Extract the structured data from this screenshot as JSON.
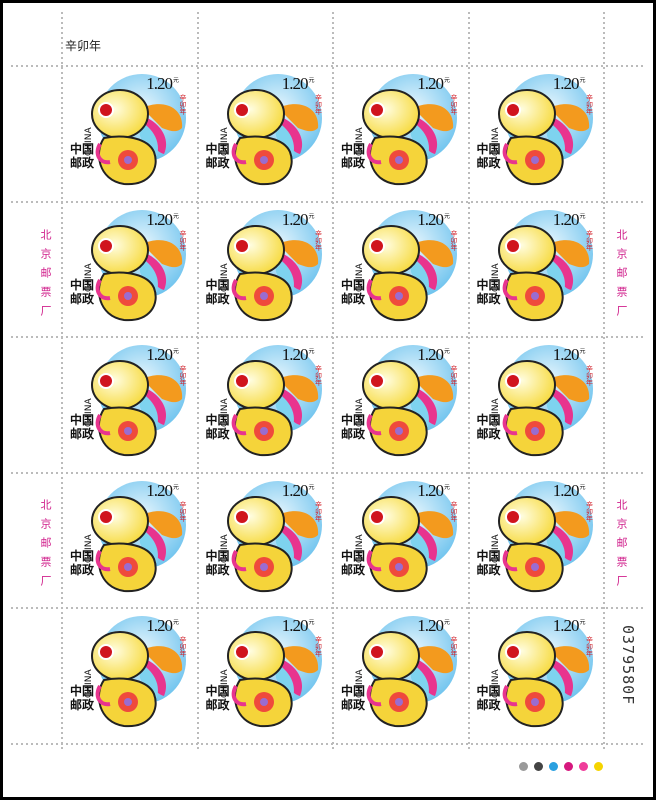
{
  "sheet_title": "辛卯年",
  "stamp": {
    "denomination": "1.20",
    "unit": "元",
    "country_cn": "中国邮政",
    "country_en": "CHINA",
    "caption": "辛卯年"
  },
  "margin_imprint": "北京邮票厂",
  "serial_number": "0379580F"
}
